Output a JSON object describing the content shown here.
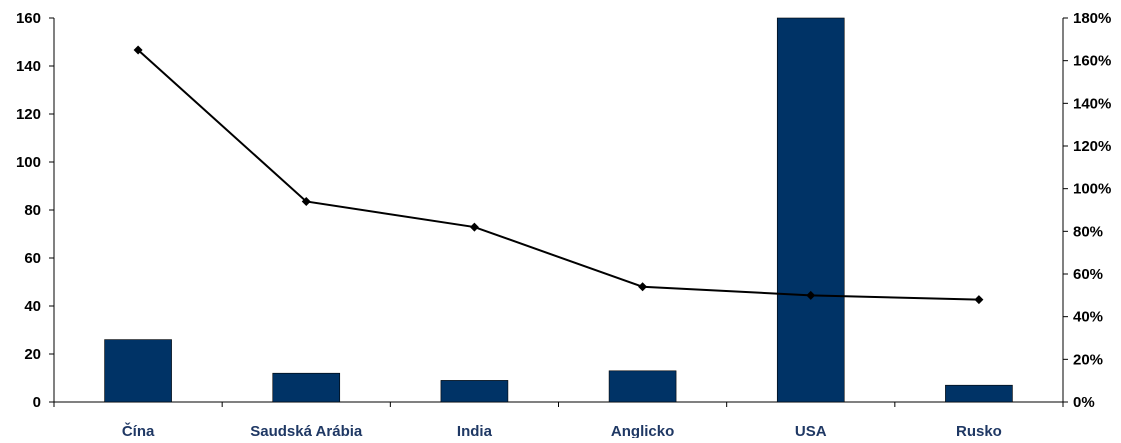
{
  "chart_data": {
    "type": "bar",
    "title": "",
    "xlabel": "",
    "ylabel": "",
    "categories": [
      "Čína",
      "Saudská Arábia",
      "India",
      "Anglicko",
      "USA",
      "Rusko"
    ],
    "series": [
      {
        "type": "bar",
        "axis": "left",
        "values": [
          26,
          12,
          9,
          13,
          160,
          7
        ],
        "color": "#003366"
      },
      {
        "type": "line",
        "axis": "right",
        "values": [
          165,
          94,
          82,
          54,
          50,
          48
        ],
        "color": "#000000",
        "marker": "diamond"
      }
    ],
    "ylim": [
      0,
      160
    ],
    "yticks": [
      "0",
      "20",
      "40",
      "60",
      "80",
      "100",
      "120",
      "140",
      "160"
    ],
    "y2lim": [
      0,
      180
    ],
    "y2ticks": [
      "0%",
      "20%",
      "40%",
      "60%",
      "80%",
      "100%",
      "120%",
      "140%",
      "160%",
      "180%"
    ],
    "grid": false,
    "legend": "none"
  }
}
